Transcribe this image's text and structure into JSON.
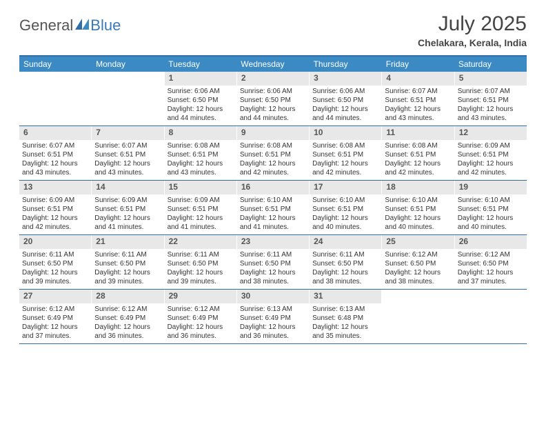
{
  "brand": {
    "general": "General",
    "blue": "Blue"
  },
  "title": "July 2025",
  "location": "Chelakara, Kerala, India",
  "header_bg": "#3b8ac4",
  "border_color": "#2f6ea8",
  "daynum_bg": "#e8e8e8",
  "weekdays": [
    "Sunday",
    "Monday",
    "Tuesday",
    "Wednesday",
    "Thursday",
    "Friday",
    "Saturday"
  ],
  "weeks": [
    [
      null,
      null,
      {
        "n": "1",
        "sr": "Sunrise: 6:06 AM",
        "ss": "Sunset: 6:50 PM",
        "d1": "Daylight: 12 hours",
        "d2": "and 44 minutes."
      },
      {
        "n": "2",
        "sr": "Sunrise: 6:06 AM",
        "ss": "Sunset: 6:50 PM",
        "d1": "Daylight: 12 hours",
        "d2": "and 44 minutes."
      },
      {
        "n": "3",
        "sr": "Sunrise: 6:06 AM",
        "ss": "Sunset: 6:50 PM",
        "d1": "Daylight: 12 hours",
        "d2": "and 44 minutes."
      },
      {
        "n": "4",
        "sr": "Sunrise: 6:07 AM",
        "ss": "Sunset: 6:51 PM",
        "d1": "Daylight: 12 hours",
        "d2": "and 43 minutes."
      },
      {
        "n": "5",
        "sr": "Sunrise: 6:07 AM",
        "ss": "Sunset: 6:51 PM",
        "d1": "Daylight: 12 hours",
        "d2": "and 43 minutes."
      }
    ],
    [
      {
        "n": "6",
        "sr": "Sunrise: 6:07 AM",
        "ss": "Sunset: 6:51 PM",
        "d1": "Daylight: 12 hours",
        "d2": "and 43 minutes."
      },
      {
        "n": "7",
        "sr": "Sunrise: 6:07 AM",
        "ss": "Sunset: 6:51 PM",
        "d1": "Daylight: 12 hours",
        "d2": "and 43 minutes."
      },
      {
        "n": "8",
        "sr": "Sunrise: 6:08 AM",
        "ss": "Sunset: 6:51 PM",
        "d1": "Daylight: 12 hours",
        "d2": "and 43 minutes."
      },
      {
        "n": "9",
        "sr": "Sunrise: 6:08 AM",
        "ss": "Sunset: 6:51 PM",
        "d1": "Daylight: 12 hours",
        "d2": "and 42 minutes."
      },
      {
        "n": "10",
        "sr": "Sunrise: 6:08 AM",
        "ss": "Sunset: 6:51 PM",
        "d1": "Daylight: 12 hours",
        "d2": "and 42 minutes."
      },
      {
        "n": "11",
        "sr": "Sunrise: 6:08 AM",
        "ss": "Sunset: 6:51 PM",
        "d1": "Daylight: 12 hours",
        "d2": "and 42 minutes."
      },
      {
        "n": "12",
        "sr": "Sunrise: 6:09 AM",
        "ss": "Sunset: 6:51 PM",
        "d1": "Daylight: 12 hours",
        "d2": "and 42 minutes."
      }
    ],
    [
      {
        "n": "13",
        "sr": "Sunrise: 6:09 AM",
        "ss": "Sunset: 6:51 PM",
        "d1": "Daylight: 12 hours",
        "d2": "and 42 minutes."
      },
      {
        "n": "14",
        "sr": "Sunrise: 6:09 AM",
        "ss": "Sunset: 6:51 PM",
        "d1": "Daylight: 12 hours",
        "d2": "and 41 minutes."
      },
      {
        "n": "15",
        "sr": "Sunrise: 6:09 AM",
        "ss": "Sunset: 6:51 PM",
        "d1": "Daylight: 12 hours",
        "d2": "and 41 minutes."
      },
      {
        "n": "16",
        "sr": "Sunrise: 6:10 AM",
        "ss": "Sunset: 6:51 PM",
        "d1": "Daylight: 12 hours",
        "d2": "and 41 minutes."
      },
      {
        "n": "17",
        "sr": "Sunrise: 6:10 AM",
        "ss": "Sunset: 6:51 PM",
        "d1": "Daylight: 12 hours",
        "d2": "and 40 minutes."
      },
      {
        "n": "18",
        "sr": "Sunrise: 6:10 AM",
        "ss": "Sunset: 6:51 PM",
        "d1": "Daylight: 12 hours",
        "d2": "and 40 minutes."
      },
      {
        "n": "19",
        "sr": "Sunrise: 6:10 AM",
        "ss": "Sunset: 6:51 PM",
        "d1": "Daylight: 12 hours",
        "d2": "and 40 minutes."
      }
    ],
    [
      {
        "n": "20",
        "sr": "Sunrise: 6:11 AM",
        "ss": "Sunset: 6:50 PM",
        "d1": "Daylight: 12 hours",
        "d2": "and 39 minutes."
      },
      {
        "n": "21",
        "sr": "Sunrise: 6:11 AM",
        "ss": "Sunset: 6:50 PM",
        "d1": "Daylight: 12 hours",
        "d2": "and 39 minutes."
      },
      {
        "n": "22",
        "sr": "Sunrise: 6:11 AM",
        "ss": "Sunset: 6:50 PM",
        "d1": "Daylight: 12 hours",
        "d2": "and 39 minutes."
      },
      {
        "n": "23",
        "sr": "Sunrise: 6:11 AM",
        "ss": "Sunset: 6:50 PM",
        "d1": "Daylight: 12 hours",
        "d2": "and 38 minutes."
      },
      {
        "n": "24",
        "sr": "Sunrise: 6:11 AM",
        "ss": "Sunset: 6:50 PM",
        "d1": "Daylight: 12 hours",
        "d2": "and 38 minutes."
      },
      {
        "n": "25",
        "sr": "Sunrise: 6:12 AM",
        "ss": "Sunset: 6:50 PM",
        "d1": "Daylight: 12 hours",
        "d2": "and 38 minutes."
      },
      {
        "n": "26",
        "sr": "Sunrise: 6:12 AM",
        "ss": "Sunset: 6:50 PM",
        "d1": "Daylight: 12 hours",
        "d2": "and 37 minutes."
      }
    ],
    [
      {
        "n": "27",
        "sr": "Sunrise: 6:12 AM",
        "ss": "Sunset: 6:49 PM",
        "d1": "Daylight: 12 hours",
        "d2": "and 37 minutes."
      },
      {
        "n": "28",
        "sr": "Sunrise: 6:12 AM",
        "ss": "Sunset: 6:49 PM",
        "d1": "Daylight: 12 hours",
        "d2": "and 36 minutes."
      },
      {
        "n": "29",
        "sr": "Sunrise: 6:12 AM",
        "ss": "Sunset: 6:49 PM",
        "d1": "Daylight: 12 hours",
        "d2": "and 36 minutes."
      },
      {
        "n": "30",
        "sr": "Sunrise: 6:13 AM",
        "ss": "Sunset: 6:49 PM",
        "d1": "Daylight: 12 hours",
        "d2": "and 36 minutes."
      },
      {
        "n": "31",
        "sr": "Sunrise: 6:13 AM",
        "ss": "Sunset: 6:48 PM",
        "d1": "Daylight: 12 hours",
        "d2": "and 35 minutes."
      },
      null,
      null
    ]
  ]
}
